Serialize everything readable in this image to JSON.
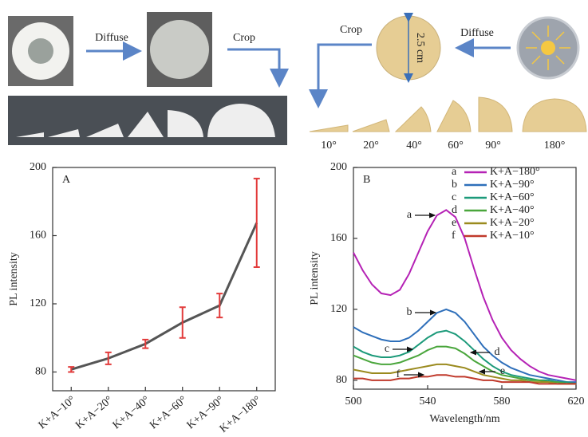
{
  "diagram": {
    "left": {
      "diffuse": "Diffuse",
      "crop": "Crop"
    },
    "right": {
      "crop": "Crop",
      "diameter": "2.5 cm",
      "diffuse": "Diffuse",
      "angles": [
        "10°",
        "20°",
        "40°",
        "60°",
        "90°",
        "180°"
      ]
    }
  },
  "chart_data": [
    {
      "type": "errorline",
      "title": "A",
      "ylabel": "PL intensity",
      "color": "#555555",
      "error_color": "#e23b3b",
      "categories": [
        "K+A−10°",
        "K+A−20°",
        "K+A−40°",
        "K+A−60°",
        "K+A−90°",
        "K+A−180°"
      ],
      "values": [
        81.5,
        88,
        96.5,
        109,
        119,
        167.5
      ],
      "errors": [
        1.5,
        3.5,
        2.5,
        9,
        7,
        26
      ],
      "ylim": [
        69,
        200
      ],
      "yticks": [
        80,
        120,
        160,
        200
      ]
    },
    {
      "type": "line",
      "title": "B",
      "xlabel": "Wavelength/nm",
      "ylabel": "PL intensity",
      "x": [
        500,
        505,
        510,
        515,
        520,
        525,
        530,
        535,
        540,
        545,
        550,
        555,
        560,
        565,
        570,
        575,
        580,
        585,
        590,
        595,
        600,
        605,
        610,
        615,
        620
      ],
      "xlim": [
        500,
        620
      ],
      "xticks": [
        500,
        540,
        580,
        620
      ],
      "ylim": [
        75,
        200
      ],
      "yticks": [
        80,
        120,
        160,
        200
      ],
      "series": [
        {
          "letter": "a",
          "name": "K+A−180°",
          "color": "#b522b5",
          "values": [
            152,
            142,
            134,
            129,
            128,
            131,
            140,
            152,
            164,
            173,
            176,
            172,
            160,
            143,
            127,
            114,
            104,
            97,
            92,
            88,
            85,
            83,
            82,
            81,
            80
          ]
        },
        {
          "letter": "b",
          "name": "K+A−90°",
          "color": "#2e6fba",
          "values": [
            110,
            107,
            105,
            103,
            102,
            102,
            104,
            108,
            113,
            118,
            120,
            118,
            113,
            106,
            99,
            94,
            90,
            87,
            85,
            83,
            82,
            81,
            80,
            79,
            79
          ]
        },
        {
          "letter": "c",
          "name": "K+A−60°",
          "color": "#1c9a7a",
          "values": [
            99,
            96,
            94,
            93,
            93,
            94,
            96,
            100,
            104,
            107,
            108,
            106,
            102,
            97,
            92,
            88,
            85,
            83,
            82,
            81,
            80,
            80,
            79,
            79,
            78
          ]
        },
        {
          "letter": "d",
          "name": "K+A−40°",
          "color": "#4aa63c",
          "values": [
            94,
            92,
            90,
            89,
            89,
            90,
            92,
            94,
            97,
            99,
            99,
            98,
            95,
            91,
            88,
            85,
            83,
            82,
            81,
            80,
            80,
            79,
            79,
            78,
            78
          ]
        },
        {
          "letter": "e",
          "name": "K+A−20°",
          "color": "#9a8a1e",
          "values": [
            86,
            85,
            84,
            84,
            84,
            85,
            86,
            87,
            88,
            89,
            89,
            88,
            87,
            85,
            83,
            82,
            81,
            80,
            80,
            79,
            79,
            79,
            78,
            78,
            78
          ]
        },
        {
          "letter": "f",
          "name": "K+A−10°",
          "color": "#c0392b",
          "values": [
            81,
            81,
            80,
            80,
            80,
            81,
            81,
            82,
            82,
            83,
            83,
            82,
            82,
            81,
            80,
            80,
            79,
            79,
            79,
            79,
            78,
            78,
            78,
            78,
            78
          ]
        }
      ]
    }
  ]
}
